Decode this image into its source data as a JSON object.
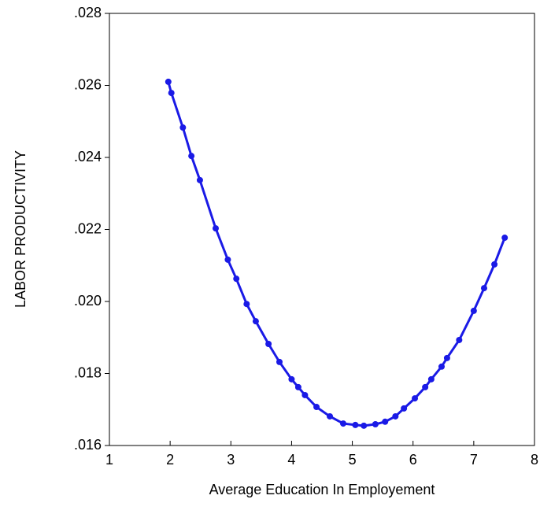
{
  "chart_data": {
    "type": "line",
    "x_label": "Average Education In Employement",
    "y_label": "LABOR PRODUCTIVITY",
    "x": [
      1.97,
      2.02,
      2.21,
      2.35,
      2.49,
      2.75,
      2.95,
      3.09,
      3.26,
      3.41,
      3.62,
      3.8,
      4.0,
      4.11,
      4.22,
      4.41,
      4.63,
      4.85,
      5.05,
      5.19,
      5.38,
      5.54,
      5.71,
      5.85,
      6.03,
      6.2,
      6.3,
      6.47,
      6.56,
      6.76,
      7.0,
      7.17,
      7.34,
      7.51
    ],
    "series": [
      {
        "color": "#1a1ae6",
        "values": [
          0.0261,
          0.02579,
          0.02483,
          0.02404,
          0.02337,
          0.02203,
          0.02116,
          0.02063,
          0.01993,
          0.01945,
          0.01882,
          0.01832,
          0.01784,
          0.01762,
          0.0174,
          0.01707,
          0.01681,
          0.01661,
          0.01657,
          0.01655,
          0.01659,
          0.01666,
          0.01681,
          0.01703,
          0.01731,
          0.01762,
          0.01784,
          0.01819,
          0.01843,
          0.01893,
          0.01974,
          0.02037,
          0.02103,
          0.02177
        ]
      }
    ],
    "xlim": [
      1,
      8
    ],
    "xticks": [
      1,
      2,
      3,
      4,
      5,
      6,
      7,
      8
    ],
    "ylim": [
      0.016,
      0.028
    ],
    "yticks": [
      {
        "value": 0.016,
        "label": ".016"
      },
      {
        "value": 0.018,
        "label": ".018"
      },
      {
        "value": 0.02,
        "label": ".020"
      },
      {
        "value": 0.022,
        "label": ".022"
      },
      {
        "value": 0.024,
        "label": ".024"
      },
      {
        "value": 0.026,
        "label": ".026"
      },
      {
        "value": 0.028,
        "label": ".028"
      }
    ]
  }
}
